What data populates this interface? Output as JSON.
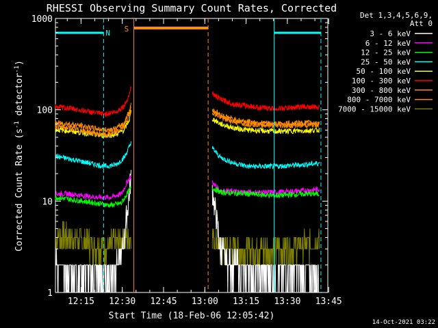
{
  "chart_data": {
    "type": "line",
    "title": "RHESSI Observing Summary Count Rates, Corrected",
    "xlabel": "Start Time (18-Feb-06 12:05:42)",
    "ylabel_main": "Corrected Count Rate (s",
    "ylabel_sup1": "-1",
    "ylabel_mid": " detector",
    "ylabel_sup2": "-1",
    "ylabel_end": ")",
    "yscale": "log",
    "ylim": [
      1,
      1000
    ],
    "xlim_minutes": [
      0,
      99
    ],
    "xtick_labels": [
      "12:15",
      "12:30",
      "12:45",
      "13:00",
      "13:15",
      "13:30",
      "13:45"
    ],
    "xtick_minutes": [
      9.3,
      24.3,
      39.3,
      54.3,
      69.3,
      84.3,
      99.3
    ],
    "ytick_labels": [
      "1",
      "10",
      "100",
      "1000"
    ],
    "ytick_values": [
      1,
      10,
      100,
      1000
    ],
    "legend_header": [
      "Det 1,3,4,5,6,9,",
      "Att 0"
    ],
    "legend_position": "top-right",
    "date_stamp": "14-Oct-2021 03:22",
    "annotations": {
      "night_label": "N",
      "saa_label": "S",
      "night_color": "#00ffff",
      "saa_color": "#ff8c00"
    },
    "night_bars": [
      {
        "start": 0.0,
        "end": 17.5
      },
      {
        "start": 79.5,
        "end": 96.5
      }
    ],
    "saa_bar": {
      "start": 28.5,
      "end": 55.5
    },
    "dashed_lines": [
      {
        "minute": 17.5,
        "color": "#00ffff"
      },
      {
        "minute": 55.5,
        "color": "#ff8c00"
      },
      {
        "minute": 96.5,
        "color": "#00ffff"
      }
    ],
    "solid_lines": [
      {
        "minute": 28.5,
        "color": "#ff8c00"
      },
      {
        "minute": 79.5,
        "color": "#00ffff"
      }
    ],
    "gap": {
      "start": 27.5,
      "end": 57.0
    },
    "series": [
      {
        "name": "3 - 6 keV",
        "color": "#ffffff",
        "pre": [
          [
            0,
            2
          ],
          [
            5,
            1.6
          ],
          [
            10,
            1.7
          ],
          [
            15,
            1.5
          ],
          [
            20,
            1.6
          ],
          [
            23,
            2
          ],
          [
            24,
            2.5
          ],
          [
            25,
            4
          ],
          [
            26,
            7
          ],
          [
            27,
            14
          ],
          [
            27.5,
            18
          ]
        ],
        "post": [
          [
            57,
            14
          ],
          [
            58,
            8
          ],
          [
            60,
            3
          ],
          [
            63,
            2
          ],
          [
            70,
            1.7
          ],
          [
            80,
            1.6
          ],
          [
            90,
            1.6
          ],
          [
            96,
            1.6
          ]
        ]
      },
      {
        "name": "6 - 12 keV",
        "color": "#ff00ff",
        "pre": [
          [
            0,
            12
          ],
          [
            5,
            12
          ],
          [
            10,
            11.5
          ],
          [
            15,
            11
          ],
          [
            20,
            11
          ],
          [
            24,
            12
          ],
          [
            26,
            16
          ],
          [
            27.5,
            19
          ]
        ],
        "post": [
          [
            57,
            16
          ],
          [
            60,
            13
          ],
          [
            70,
            12.5
          ],
          [
            80,
            12.5
          ],
          [
            90,
            13
          ],
          [
            96,
            13.5
          ]
        ]
      },
      {
        "name": "12 - 25 keV",
        "color": "#00ff00",
        "pre": [
          [
            0,
            11
          ],
          [
            5,
            10.5
          ],
          [
            10,
            10
          ],
          [
            15,
            9.5
          ],
          [
            20,
            9
          ],
          [
            24,
            9.5
          ],
          [
            26,
            12
          ],
          [
            27.5,
            14
          ]
        ],
        "post": [
          [
            57,
            14
          ],
          [
            60,
            12.5
          ],
          [
            70,
            12
          ],
          [
            80,
            11.5
          ],
          [
            90,
            12
          ],
          [
            96,
            12
          ]
        ]
      },
      {
        "name": "25 - 50 keV",
        "color": "#00ffff",
        "pre": [
          [
            0,
            31
          ],
          [
            5,
            29
          ],
          [
            10,
            27
          ],
          [
            15,
            25
          ],
          [
            18,
            24
          ],
          [
            22,
            25
          ],
          [
            25,
            30
          ],
          [
            27,
            40
          ],
          [
            27.5,
            45
          ]
        ],
        "post": [
          [
            57,
            38
          ],
          [
            60,
            30
          ],
          [
            65,
            26
          ],
          [
            70,
            24
          ],
          [
            80,
            24
          ],
          [
            90,
            25
          ],
          [
            96,
            26
          ]
        ]
      },
      {
        "name": "50 - 100 keV",
        "color": "#ffff00",
        "pre": [
          [
            0,
            61
          ],
          [
            5,
            59
          ],
          [
            10,
            56
          ],
          [
            15,
            53
          ],
          [
            18,
            52
          ],
          [
            22,
            54
          ],
          [
            25,
            60
          ],
          [
            27,
            80
          ],
          [
            27.5,
            95
          ]
        ],
        "post": [
          [
            57,
            80
          ],
          [
            60,
            70
          ],
          [
            65,
            63
          ],
          [
            70,
            60
          ],
          [
            80,
            58
          ],
          [
            90,
            59
          ],
          [
            96,
            60
          ]
        ]
      },
      {
        "name": "100 - 300 keV",
        "color": "#ff0000",
        "pre": [
          [
            0,
            108
          ],
          [
            5,
            104
          ],
          [
            10,
            98
          ],
          [
            15,
            92
          ],
          [
            18,
            90
          ],
          [
            22,
            95
          ],
          [
            25,
            110
          ],
          [
            27,
            150
          ],
          [
            27.5,
            185
          ]
        ],
        "post": [
          [
            57,
            150
          ],
          [
            60,
            130
          ],
          [
            65,
            115
          ],
          [
            70,
            110
          ],
          [
            75,
            105
          ],
          [
            80,
            103
          ],
          [
            85,
            105
          ],
          [
            90,
            108
          ],
          [
            96,
            106
          ]
        ]
      },
      {
        "name": "300 - 800 keV",
        "color": "#ff8c00",
        "pre": [
          [
            0,
            66
          ],
          [
            5,
            63
          ],
          [
            10,
            59
          ],
          [
            15,
            55
          ],
          [
            18,
            53
          ],
          [
            22,
            56
          ],
          [
            25,
            66
          ],
          [
            27,
            90
          ],
          [
            27.5,
            110
          ]
        ],
        "post": [
          [
            57,
            95
          ],
          [
            60,
            82
          ],
          [
            65,
            74
          ],
          [
            70,
            70
          ],
          [
            80,
            67
          ],
          [
            90,
            68
          ],
          [
            96,
            69
          ]
        ]
      },
      {
        "name": "800 - 7000 keV",
        "color": "#ff8c00",
        "pre": [
          [
            0,
            72
          ],
          [
            5,
            70
          ],
          [
            10,
            66
          ],
          [
            15,
            62
          ],
          [
            18,
            60
          ],
          [
            22,
            62
          ],
          [
            25,
            72
          ],
          [
            27,
            100
          ],
          [
            27.5,
            120
          ]
        ],
        "post": [
          [
            57,
            100
          ],
          [
            60,
            88
          ],
          [
            65,
            78
          ],
          [
            70,
            74
          ],
          [
            80,
            70
          ],
          [
            90,
            72
          ],
          [
            96,
            72
          ]
        ]
      },
      {
        "name": "7000 - 15000 keV",
        "color": "#808000",
        "pre": [
          [
            0,
            4.2
          ],
          [
            5,
            4
          ],
          [
            10,
            3.6
          ],
          [
            15,
            3.3
          ],
          [
            18,
            3.2
          ],
          [
            22,
            3.5
          ],
          [
            25,
            3.8
          ],
          [
            27.5,
            4
          ]
        ],
        "post": [
          [
            57,
            4
          ],
          [
            60,
            3.2
          ],
          [
            65,
            3
          ],
          [
            70,
            2.9
          ],
          [
            80,
            2.9
          ],
          [
            90,
            3.2
          ],
          [
            96,
            3.5
          ]
        ]
      }
    ]
  }
}
